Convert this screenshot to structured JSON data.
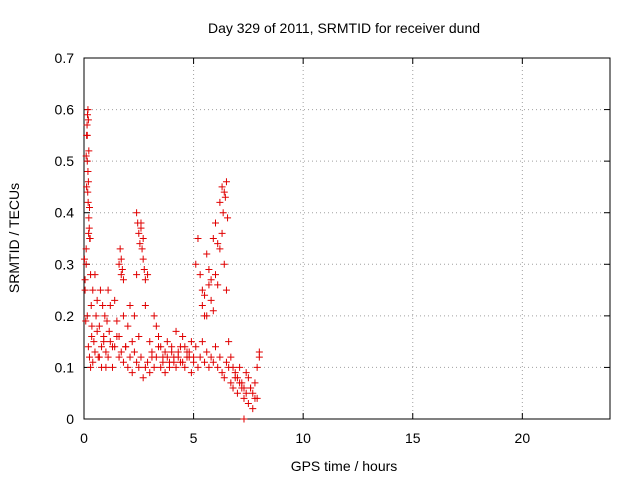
{
  "chart_data": {
    "type": "scatter",
    "title": "Day 329 of 2011, SRMTID for receiver dund",
    "xlabel": "GPS time / hours",
    "ylabel": "SRMTID / TECUs",
    "xlim": [
      0,
      24
    ],
    "ylim": [
      0,
      0.7
    ],
    "xticks": [
      "0",
      "5",
      "10",
      "15",
      "20"
    ],
    "yticks": [
      "0",
      "0.1",
      "0.2",
      "0.3",
      "0.4",
      "0.5",
      "0.6",
      "0.7"
    ],
    "grid": true,
    "marker": "plus",
    "color": "#e00000",
    "series": [
      {
        "x": [
          0.02,
          0.05,
          0.08,
          0.1,
          0.12,
          0.15,
          0.18,
          0.2,
          0.22,
          0.25,
          0.28,
          0.3,
          0.33,
          0.36,
          0.4,
          0.45,
          0.5,
          0.55,
          0.6,
          0.65,
          0.7,
          0.75,
          0.8,
          0.85,
          0.9,
          0.95,
          1.0,
          1.05,
          1.1,
          1.15,
          1.2,
          1.3,
          1.4,
          1.5,
          1.6,
          1.7,
          1.8,
          1.9,
          2.0,
          2.1,
          2.2,
          2.3,
          2.4,
          2.5,
          2.6,
          2.7,
          2.8,
          2.9,
          3.0,
          3.1,
          3.2,
          3.3,
          3.4,
          3.5,
          3.6,
          3.7,
          3.8,
          3.9,
          4.0,
          4.1,
          4.2,
          4.3,
          4.4,
          4.5,
          4.6,
          4.7,
          4.8,
          4.9,
          5.0,
          5.1,
          5.2,
          5.3,
          5.4,
          5.5,
          5.6,
          5.7,
          5.8,
          5.9,
          6.0,
          6.1,
          6.2,
          6.3,
          6.4,
          6.5,
          6.6,
          6.7,
          6.8,
          6.9,
          7.0,
          7.1,
          7.2,
          7.3,
          7.4,
          7.5,
          7.6,
          7.7,
          7.8,
          7.9,
          8.0,
          0.05,
          0.1,
          0.15,
          0.2,
          0.25,
          0.3,
          0.35,
          0.4,
          0.5,
          0.6,
          0.7,
          0.8,
          0.9,
          1.0,
          1.1,
          1.2,
          1.3,
          1.4,
          1.5,
          1.6,
          1.7,
          1.8,
          1.9,
          2.0,
          2.1,
          2.2,
          2.3,
          2.4,
          2.5,
          2.6,
          2.7,
          2.8,
          2.9,
          3.0,
          3.1,
          3.2,
          3.3,
          3.4,
          3.5,
          3.6,
          3.7,
          3.8,
          3.9,
          4.0,
          4.1,
          4.2,
          4.3,
          4.4,
          4.5,
          4.6,
          4.7,
          4.8,
          4.9,
          5.0,
          5.1,
          5.2,
          5.3,
          5.4,
          5.5,
          5.6,
          5.7,
          5.8,
          5.9,
          6.0,
          6.1,
          6.2,
          6.3,
          6.4,
          6.5,
          6.6,
          6.7,
          6.8,
          6.9,
          7.0,
          7.1,
          7.2,
          7.3,
          7.4,
          7.5,
          7.6,
          7.7,
          7.8,
          7.9,
          8.0,
          0.1,
          0.12,
          0.14,
          0.16,
          0.18,
          0.2,
          0.22,
          0.24,
          0.26,
          0.15,
          0.17,
          0.19,
          0.21,
          1.6,
          1.65,
          1.7,
          1.75,
          1.8,
          2.4,
          2.45,
          2.5,
          2.55,
          2.6,
          2.65,
          2.7,
          2.75,
          2.8,
          5.4,
          5.5,
          5.6,
          5.7,
          5.8,
          5.9,
          6.0,
          6.1,
          6.2,
          6.3,
          6.35,
          6.4,
          6.45,
          6.5,
          6.55,
          7.3
        ],
        "y": [
          0.31,
          0.25,
          0.19,
          0.33,
          0.45,
          0.55,
          0.6,
          0.58,
          0.52,
          0.41,
          0.35,
          0.28,
          0.22,
          0.18,
          0.25,
          0.15,
          0.28,
          0.2,
          0.23,
          0.12,
          0.18,
          0.25,
          0.1,
          0.22,
          0.15,
          0.2,
          0.13,
          0.19,
          0.25,
          0.17,
          0.22,
          0.14,
          0.23,
          0.19,
          0.16,
          0.28,
          0.2,
          0.14,
          0.18,
          0.22,
          0.15,
          0.2,
          0.28,
          0.16,
          0.38,
          0.35,
          0.22,
          0.28,
          0.15,
          0.12,
          0.2,
          0.18,
          0.16,
          0.14,
          0.12,
          0.13,
          0.15,
          0.11,
          0.14,
          0.12,
          0.17,
          0.13,
          0.11,
          0.16,
          0.14,
          0.12,
          0.13,
          0.15,
          0.12,
          0.3,
          0.35,
          0.28,
          0.25,
          0.2,
          0.32,
          0.29,
          0.27,
          0.35,
          0.38,
          0.34,
          0.42,
          0.45,
          0.3,
          0.25,
          0.15,
          0.12,
          0.1,
          0.09,
          0.08,
          0.1,
          0.07,
          0.06,
          0.09,
          0.08,
          0.06,
          0.05,
          0.07,
          0.04,
          0.12,
          0.27,
          0.3,
          0.2,
          0.14,
          0.12,
          0.1,
          0.16,
          0.11,
          0.13,
          0.17,
          0.12,
          0.14,
          0.16,
          0.1,
          0.12,
          0.15,
          0.1,
          0.14,
          0.16,
          0.12,
          0.13,
          0.11,
          0.14,
          0.1,
          0.12,
          0.09,
          0.13,
          0.11,
          0.1,
          0.12,
          0.08,
          0.1,
          0.11,
          0.09,
          0.13,
          0.1,
          0.12,
          0.14,
          0.1,
          0.11,
          0.09,
          0.12,
          0.1,
          0.13,
          0.11,
          0.1,
          0.12,
          0.14,
          0.11,
          0.1,
          0.13,
          0.12,
          0.09,
          0.11,
          0.14,
          0.1,
          0.12,
          0.15,
          0.11,
          0.13,
          0.1,
          0.12,
          0.11,
          0.14,
          0.1,
          0.12,
          0.09,
          0.08,
          0.11,
          0.1,
          0.07,
          0.06,
          0.08,
          0.05,
          0.07,
          0.06,
          0.04,
          0.05,
          0.03,
          0.06,
          0.02,
          0.04,
          0.1,
          0.13,
          0.51,
          0.55,
          0.57,
          0.59,
          0.48,
          0.46,
          0.39,
          0.37,
          0.35,
          0.5,
          0.44,
          0.42,
          0.36,
          0.3,
          0.33,
          0.31,
          0.29,
          0.27,
          0.4,
          0.38,
          0.36,
          0.34,
          0.37,
          0.33,
          0.31,
          0.29,
          0.27,
          0.22,
          0.24,
          0.2,
          0.26,
          0.23,
          0.21,
          0.28,
          0.26,
          0.33,
          0.36,
          0.4,
          0.44,
          0.43,
          0.46,
          0.39,
          0.0
        ]
      }
    ]
  }
}
